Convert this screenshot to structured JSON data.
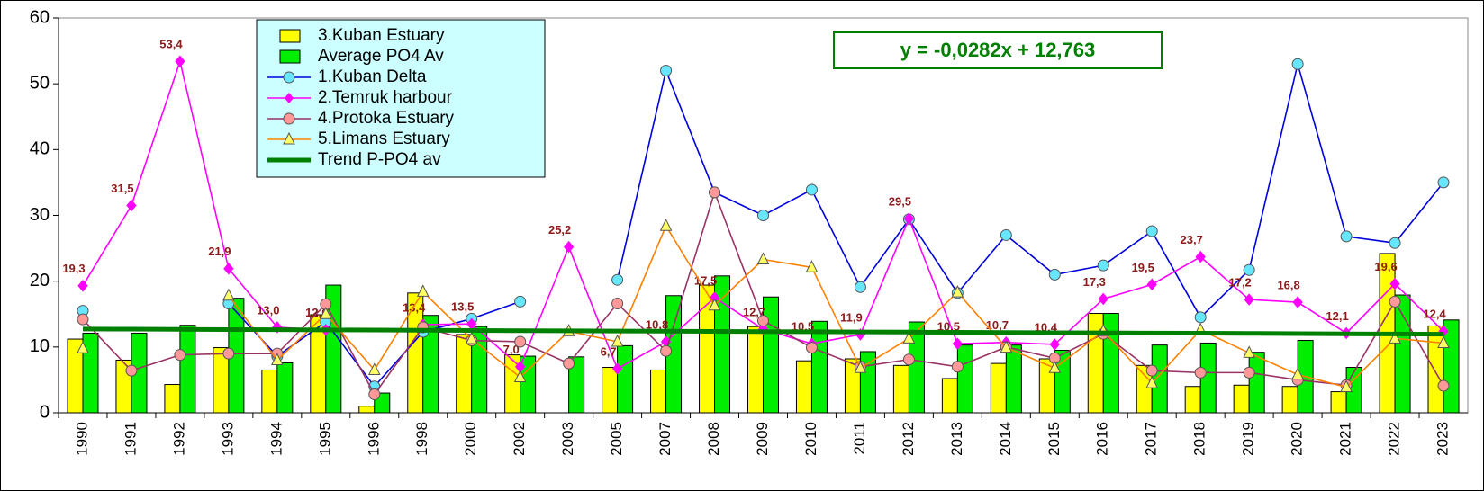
{
  "chart_data": {
    "type": "combo",
    "categories": [
      "1990",
      "1991",
      "1992",
      "1993",
      "1994",
      "1995",
      "1996",
      "1998",
      "2000",
      "2002",
      "2003",
      "2005",
      "2007",
      "2008",
      "2009",
      "2010",
      "2011",
      "2012",
      "2013",
      "2014",
      "2015",
      "2016",
      "2017",
      "2018",
      "2019",
      "2020",
      "2021",
      "2022",
      "2023"
    ],
    "ylim": [
      0,
      60
    ],
    "yticks": [
      0,
      10,
      20,
      30,
      40,
      50,
      60
    ],
    "equation": "y = -0,0282x + 12,763",
    "series": [
      {
        "name": "3.Kuban Estuary",
        "type": "bar",
        "color": "#ffff00",
        "values": [
          11.2,
          8.0,
          4.3,
          9.9,
          6.5,
          14.9,
          1.0,
          18.2,
          11.9,
          8.8,
          null,
          6.9,
          6.5,
          19.4,
          13.1,
          7.9,
          8.2,
          7.2,
          5.2,
          7.5,
          8.2,
          15.1,
          7.2,
          4.0,
          4.2,
          4.0,
          3.2,
          24.2,
          13.2
        ]
      },
      {
        "name": "Average PO4 Av",
        "type": "bar",
        "color": "#00ee00",
        "values": [
          12.1,
          12.1,
          13.3,
          17.4,
          7.6,
          19.4,
          3.0,
          14.8,
          13.1,
          8.6,
          8.5,
          10.2,
          17.8,
          20.8,
          17.6,
          13.9,
          9.3,
          13.8,
          10.3,
          10.3,
          9.5,
          15.1,
          10.3,
          10.6,
          9.2,
          11.0,
          6.9,
          17.9,
          14.1
        ]
      },
      {
        "name": "1.Kuban Delta",
        "type": "line",
        "color": "#0000dd",
        "marker": "circle",
        "marker_color": "#66e6ff",
        "values": [
          15.5,
          null,
          null,
          16.6,
          8.6,
          13.8,
          4.0,
          12.3,
          14.3,
          16.9,
          null,
          20.2,
          52.0,
          33.5,
          30.0,
          33.9,
          19.1,
          29.4,
          18.2,
          27.0,
          21.0,
          22.4,
          27.6,
          14.5,
          21.7,
          53.0,
          26.8,
          25.8,
          35.0
        ]
      },
      {
        "name": "2.Temruk harbour",
        "type": "line",
        "color": "#ff00ff",
        "marker": "diamond",
        "marker_color": "#ff00ff",
        "values": [
          19.3,
          31.5,
          53.4,
          21.9,
          13.0,
          12.6,
          null,
          13.4,
          13.5,
          7.0,
          25.2,
          6.7,
          10.8,
          17.5,
          12.7,
          10.5,
          11.9,
          29.5,
          10.5,
          10.7,
          10.4,
          17.3,
          19.5,
          23.7,
          17.2,
          16.8,
          12.1,
          19.6,
          12.4
        ],
        "value_labels": [
          "19,3",
          "31,5",
          "53,4",
          "21,9",
          "13,0",
          "12,6",
          null,
          "13,4",
          "13,5",
          "7,0",
          "25,2",
          "6,7",
          "10,8",
          "17,5",
          "12,7",
          "10,5",
          "11,9",
          "29,5",
          "10,5",
          "10,7",
          "10,4",
          "17,3",
          "19,5",
          "23,7",
          "17,2",
          "16,8",
          "12,1",
          "19,6",
          "12,4"
        ],
        "label_color": "#8b1a1a"
      },
      {
        "name": "4.Protoka Estuary",
        "type": "line",
        "color": "#993366",
        "marker": "circle",
        "marker_color": "#ff9999",
        "values": [
          14.2,
          6.4,
          8.8,
          9.0,
          9.0,
          16.5,
          2.8,
          13.0,
          11.0,
          10.8,
          7.5,
          16.6,
          9.4,
          33.5,
          14.0,
          9.9,
          7.0,
          8.1,
          7.0,
          10.0,
          8.3,
          12.0,
          6.4,
          6.1,
          6.1,
          5.0,
          4.2,
          16.9,
          4.1
        ]
      },
      {
        "name": "5.Limans Estuary",
        "type": "line",
        "color": "#ff8000",
        "marker": "triangle",
        "marker_color": "#ffff66",
        "values": [
          9.8,
          null,
          null,
          17.8,
          8.0,
          15.0,
          6.5,
          18.4,
          11.2,
          5.4,
          12.4,
          10.8,
          28.4,
          16.3,
          23.3,
          22.1,
          6.8,
          11.3,
          18.3,
          9.9,
          6.8,
          12.4,
          4.5,
          12.6,
          9.1,
          5.8,
          3.9,
          11.3,
          10.6
        ]
      },
      {
        "name": "Trend P-PO4 av",
        "type": "trend",
        "color": "#008000",
        "values": [
          12.73,
          12.71,
          12.68,
          12.65,
          12.62,
          12.59,
          12.57,
          12.54,
          12.51,
          12.48,
          12.45,
          12.42,
          12.4,
          12.37,
          12.34,
          12.31,
          12.28,
          12.26,
          12.23,
          12.2,
          12.17,
          12.14,
          12.11,
          12.09,
          12.06,
          12.03,
          12.0,
          11.97,
          11.94
        ]
      }
    ]
  }
}
